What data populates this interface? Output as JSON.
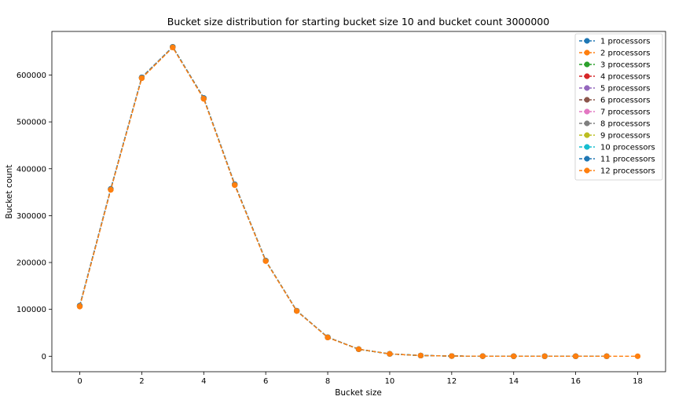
{
  "chart_data": {
    "type": "line",
    "title": "Bucket size distribution for starting bucket size 10 and bucket count 3000000",
    "xlabel": "Bucket size",
    "ylabel": "Bucket count",
    "xlim": [
      -0.9,
      18.9
    ],
    "ylim": [
      -33000,
      693000
    ],
    "xticks": [
      0,
      2,
      4,
      6,
      8,
      10,
      12,
      14,
      16,
      18
    ],
    "yticks": [
      0,
      100000,
      200000,
      300000,
      400000,
      500000,
      600000
    ],
    "grid": false,
    "legend_position": "top-right",
    "line_style": "dashed with circle markers",
    "series": [
      {
        "name": "1 processors",
        "color": "#1f77b4",
        "x": [
          0,
          1,
          2,
          3,
          4,
          5,
          6,
          7,
          8,
          9,
          10,
          11,
          12,
          13,
          14,
          15,
          16,
          17
        ],
        "values": [
          108000,
          357000,
          595000,
          660000,
          551000,
          367000,
          204000,
          97000,
          40500,
          15000,
          5000,
          1500,
          400,
          100,
          30,
          10,
          3,
          1
        ]
      },
      {
        "name": "2 processors",
        "color": "#ff7f0e",
        "x": [
          0,
          1,
          2,
          3,
          4,
          5,
          6,
          7,
          8,
          9,
          10,
          11,
          12,
          13,
          14,
          15,
          16,
          17,
          18
        ],
        "values": [
          106000,
          355000,
          593000,
          659000,
          549000,
          365000,
          203000,
          96500,
          40000,
          15000,
          5000,
          1500,
          400,
          100,
          30,
          10,
          3,
          1,
          0
        ]
      },
      {
        "name": "3 processors",
        "color": "#2ca02c",
        "x": [
          0,
          1,
          2,
          3,
          4,
          5,
          6,
          7,
          8,
          9,
          10,
          11,
          12,
          13,
          14,
          15,
          16,
          17
        ],
        "values": [
          107500,
          356500,
          594500,
          660000,
          550500,
          366500,
          204000,
          97000,
          40500,
          15000,
          5000,
          1500,
          400,
          100,
          30,
          10,
          3,
          1
        ]
      },
      {
        "name": "4 processors",
        "color": "#d62728",
        "x": [
          0,
          1,
          2,
          3,
          4,
          5,
          6,
          7,
          8,
          9,
          10,
          11,
          12,
          13,
          14,
          15,
          16,
          17
        ],
        "values": [
          107000,
          356000,
          594000,
          659500,
          550000,
          366000,
          203500,
          96800,
          40300,
          15000,
          5000,
          1500,
          400,
          100,
          30,
          10,
          3,
          1
        ]
      },
      {
        "name": "5 processors",
        "color": "#9467bd",
        "x": [
          0,
          1,
          2,
          3,
          4,
          5,
          6,
          7,
          8,
          9,
          10,
          11,
          12,
          13,
          14,
          15,
          16,
          17
        ],
        "values": [
          107800,
          356800,
          594800,
          660000,
          550800,
          366800,
          204000,
          97000,
          40500,
          15000,
          5000,
          1500,
          400,
          100,
          30,
          10,
          3,
          1
        ]
      },
      {
        "name": "6 processors",
        "color": "#8c564b",
        "x": [
          0,
          1,
          2,
          3,
          4,
          5,
          6,
          7,
          8,
          9,
          10,
          11,
          12,
          13,
          14,
          15,
          16,
          17
        ],
        "values": [
          107200,
          356200,
          594200,
          659800,
          550200,
          366200,
          203800,
          96900,
          40400,
          15000,
          5000,
          1500,
          400,
          100,
          30,
          10,
          3,
          1
        ]
      },
      {
        "name": "7 processors",
        "color": "#e377c2",
        "x": [
          0,
          1,
          2,
          3,
          4,
          5,
          6,
          7,
          8,
          9,
          10,
          11,
          12,
          13,
          14,
          15,
          16,
          17
        ],
        "values": [
          107600,
          356600,
          594600,
          660000,
          550600,
          366600,
          204000,
          97000,
          40500,
          15000,
          5000,
          1500,
          400,
          100,
          30,
          10,
          3,
          1
        ]
      },
      {
        "name": "8 processors",
        "color": "#7f7f7f",
        "x": [
          0,
          1,
          2,
          3,
          4,
          5,
          6,
          7,
          8,
          9,
          10,
          11,
          12,
          13,
          14,
          15,
          16,
          17
        ],
        "values": [
          107400,
          356400,
          594400,
          659900,
          550400,
          366400,
          203900,
          96950,
          40450,
          15000,
          5000,
          1500,
          400,
          100,
          30,
          10,
          3,
          1
        ]
      },
      {
        "name": "9 processors",
        "color": "#bcbd22",
        "x": [
          0,
          1,
          2,
          3,
          4,
          5,
          6,
          7,
          8,
          9,
          10,
          11,
          12,
          13,
          14,
          15,
          16,
          17
        ],
        "values": [
          107700,
          356700,
          594700,
          660000,
          550700,
          366700,
          204000,
          97000,
          40500,
          15000,
          5000,
          1500,
          400,
          100,
          30,
          10,
          3,
          1
        ]
      },
      {
        "name": "10 processors",
        "color": "#17becf",
        "x": [
          0,
          1,
          2,
          3,
          4,
          5,
          6,
          7,
          8,
          9,
          10,
          11,
          12,
          13,
          14,
          15,
          16,
          17
        ],
        "values": [
          107300,
          356300,
          594300,
          659800,
          550300,
          366300,
          203800,
          96900,
          40400,
          15000,
          5000,
          1500,
          400,
          100,
          30,
          10,
          3,
          1
        ]
      },
      {
        "name": "11 processors",
        "color": "#1f77b4",
        "x": [
          0,
          1,
          2,
          3,
          4,
          5,
          6,
          7,
          8,
          9,
          10,
          11,
          12,
          13,
          14,
          15,
          16,
          17
        ],
        "values": [
          107900,
          356900,
          594900,
          660000,
          550900,
          366900,
          204000,
          97000,
          40500,
          15000,
          5000,
          1500,
          400,
          100,
          30,
          10,
          3,
          1
        ]
      },
      {
        "name": "12 processors",
        "color": "#ff7f0e",
        "x": [
          0,
          1,
          2,
          3,
          4,
          5,
          6,
          7,
          8,
          9,
          10,
          11,
          12,
          13,
          14,
          15,
          16,
          17
        ],
        "values": [
          106500,
          355500,
          593500,
          659000,
          549500,
          365500,
          203200,
          96600,
          40100,
          15000,
          5000,
          1500,
          400,
          100,
          30,
          10,
          3,
          1
        ]
      }
    ]
  }
}
